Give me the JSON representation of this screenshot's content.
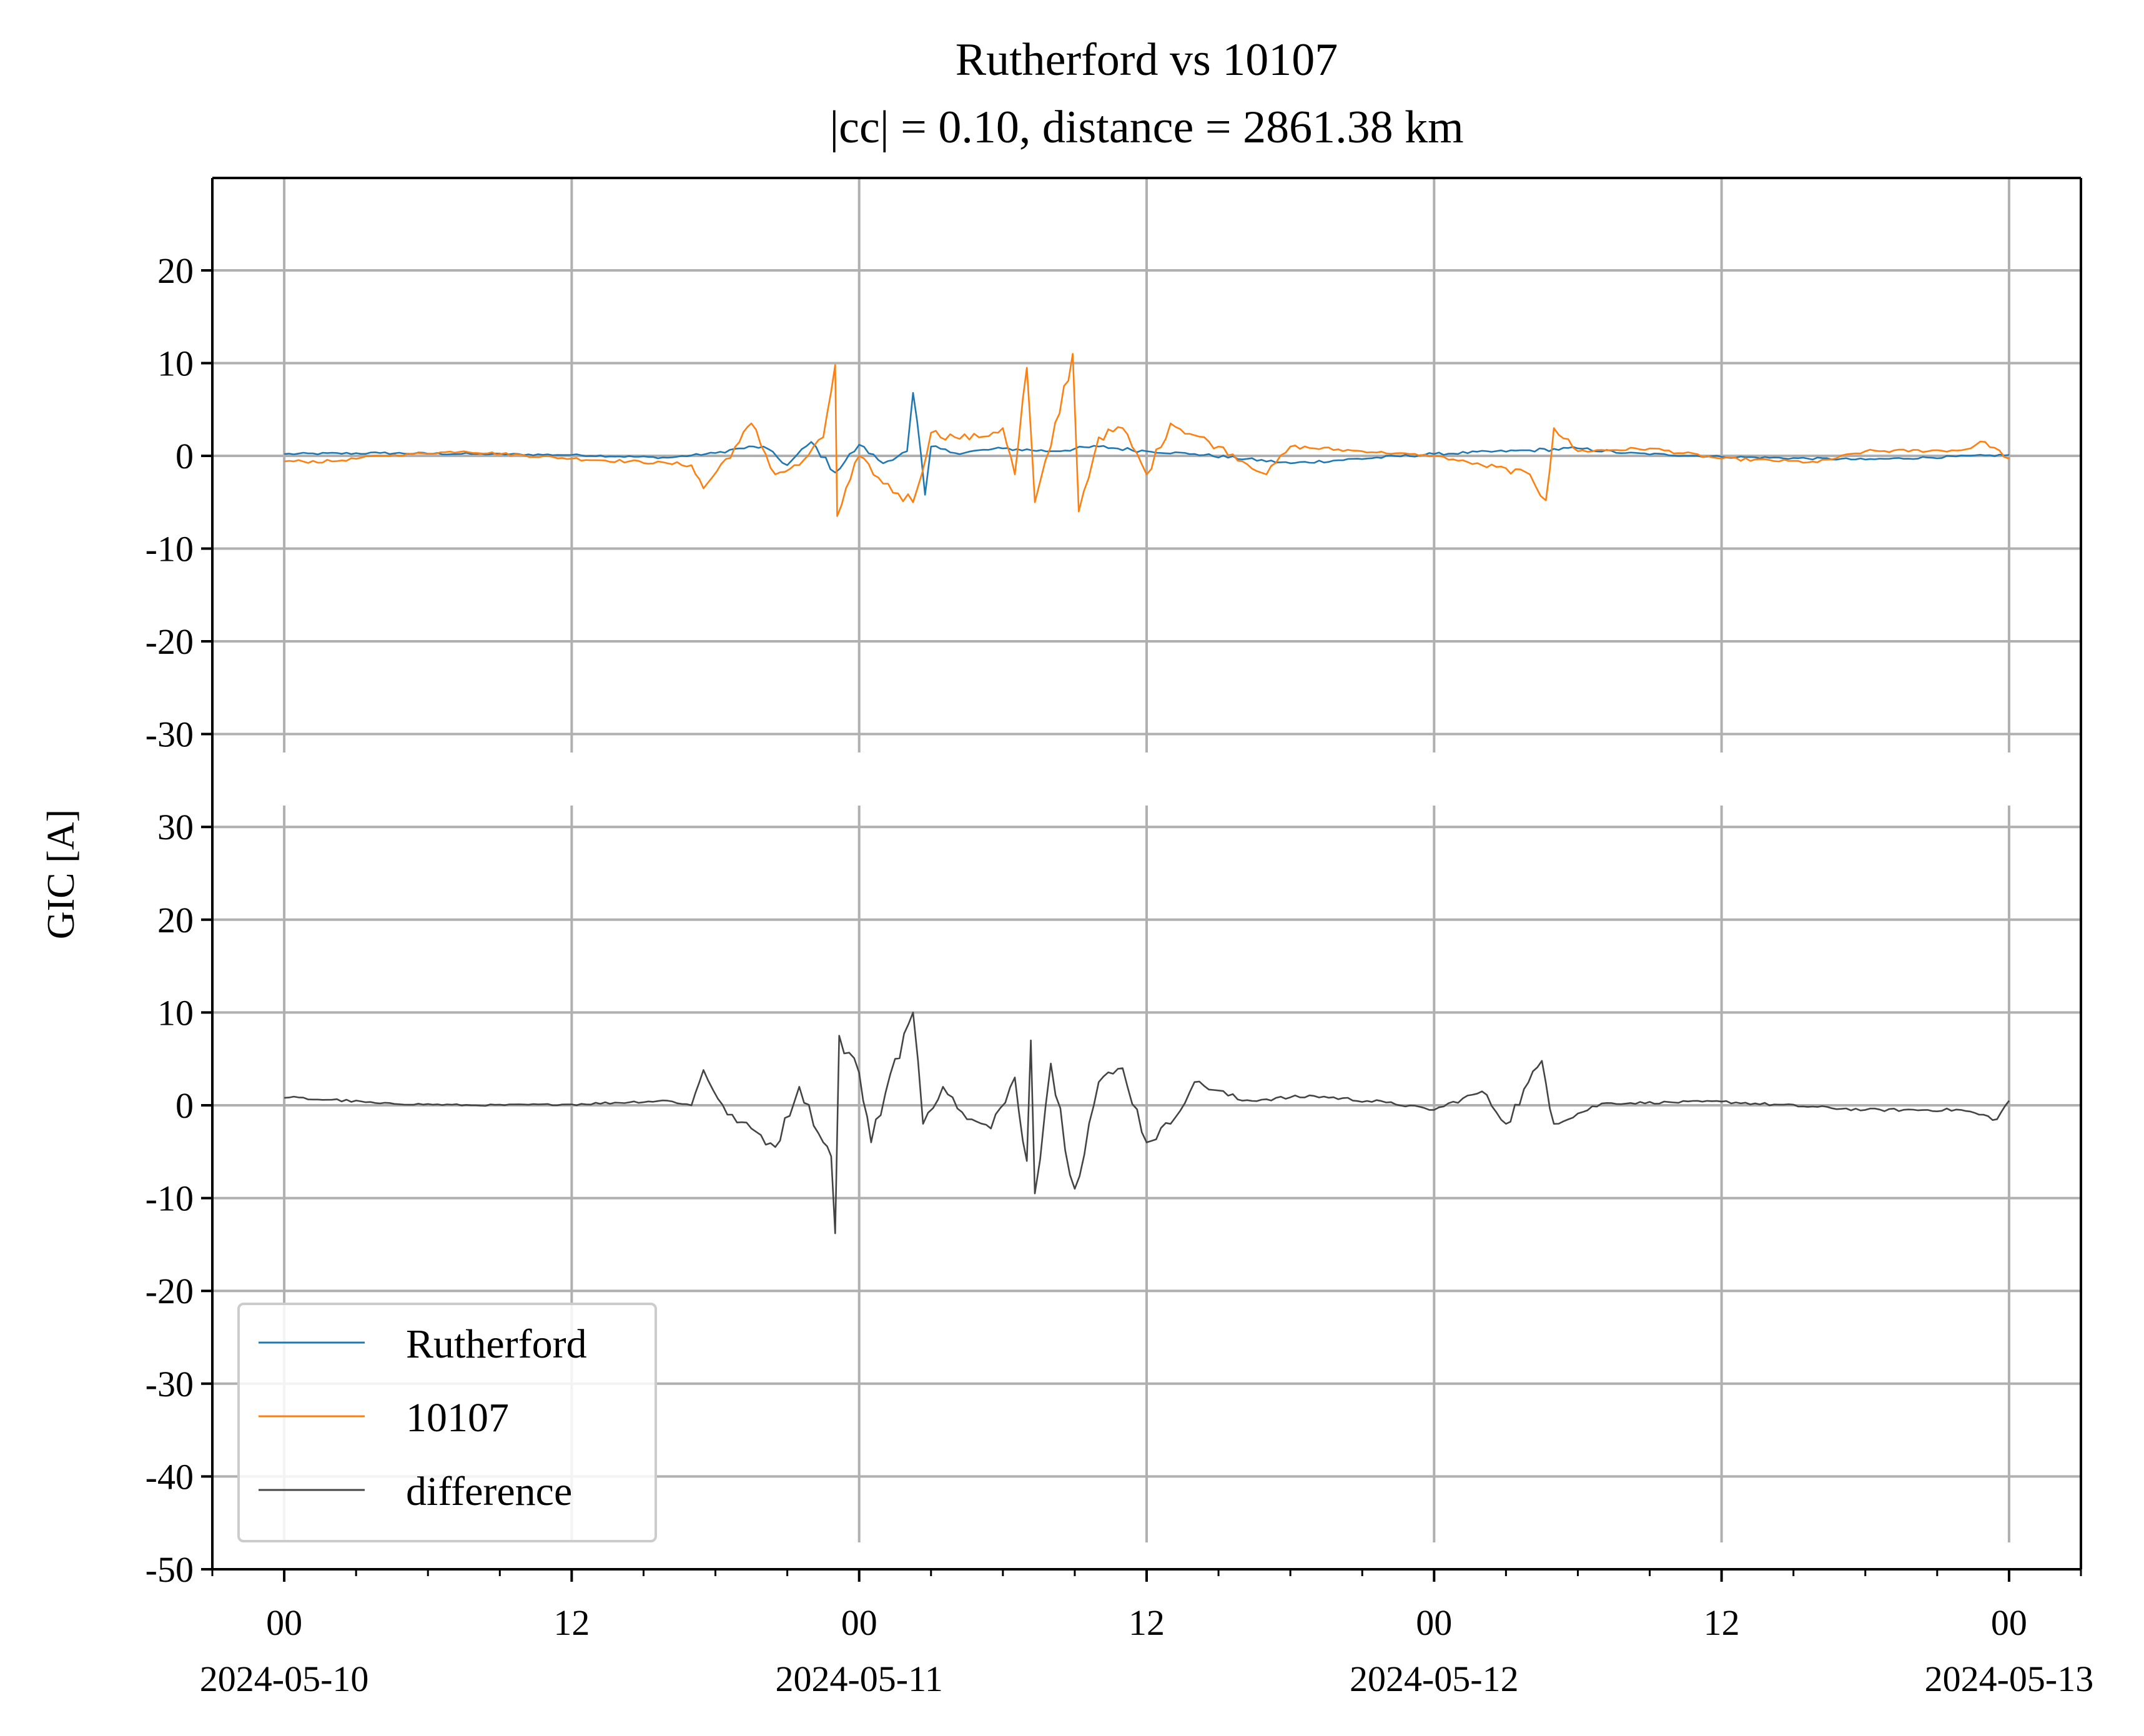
{
  "title": {
    "line1": "Rutherford vs 10107",
    "line2": "|cc| = 0.10, distance = 2861.38 km"
  },
  "ylabel": "GIC [A]",
  "chart_data": [
    {
      "type": "line",
      "panel": "top",
      "ylim": [
        -30,
        30
      ],
      "yticks": [
        -30,
        -20,
        -10,
        0,
        10,
        20
      ],
      "xlim": [
        "2024-05-09T21:00",
        "2024-05-13T03:00"
      ],
      "grid": true,
      "series": [
        {
          "name": "Rutherford",
          "color": "#1f77b4",
          "points": [
            [
              "2024-05-10T00:00",
              0.2
            ],
            [
              "2024-05-10T04:00",
              0.3
            ],
            [
              "2024-05-10T08:00",
              0.2
            ],
            [
              "2024-05-10T12:00",
              0.1
            ],
            [
              "2024-05-10T16:00",
              -0.2
            ],
            [
              "2024-05-10T18:00",
              0.3
            ],
            [
              "2024-05-10T19:00",
              0.8
            ],
            [
              "2024-05-10T20:00",
              1.0
            ],
            [
              "2024-05-10T21:00",
              -1.0
            ],
            [
              "2024-05-10T22:00",
              1.5
            ],
            [
              "2024-05-10T23:00",
              -1.8
            ],
            [
              "2024-05-11T00:00",
              1.2
            ],
            [
              "2024-05-11T01:00",
              -0.8
            ],
            [
              "2024-05-11T02:00",
              0.5
            ],
            [
              "2024-05-11T02:15",
              6.8
            ],
            [
              "2024-05-11T02:45",
              -4.2
            ],
            [
              "2024-05-11T03:00",
              1.0
            ],
            [
              "2024-05-11T04:00",
              0.3
            ],
            [
              "2024-05-11T06:00",
              0.8
            ],
            [
              "2024-05-11T08:00",
              0.5
            ],
            [
              "2024-05-11T10:00",
              1.0
            ],
            [
              "2024-05-11T12:00",
              0.5
            ],
            [
              "2024-05-11T14:00",
              0.2
            ],
            [
              "2024-05-11T18:00",
              -0.8
            ],
            [
              "2024-05-12T00:00",
              0.2
            ],
            [
              "2024-05-12T04:00",
              0.6
            ],
            [
              "2024-05-12T06:00",
              0.8
            ],
            [
              "2024-05-12T08:00",
              0.3
            ],
            [
              "2024-05-12T12:00",
              -0.1
            ],
            [
              "2024-05-12T18:00",
              -0.4
            ],
            [
              "2024-05-13T00:00",
              0.1
            ]
          ]
        },
        {
          "name": "10107",
          "color": "#ff7f0e",
          "points": [
            [
              "2024-05-10T00:00",
              -0.6
            ],
            [
              "2024-05-10T02:00",
              -0.6
            ],
            [
              "2024-05-10T04:00",
              0.0
            ],
            [
              "2024-05-10T07:30",
              0.5
            ],
            [
              "2024-05-10T12:00",
              -0.3
            ],
            [
              "2024-05-10T16:00",
              -0.8
            ],
            [
              "2024-05-10T17:00",
              -1.0
            ],
            [
              "2024-05-10T17:30",
              -3.5
            ],
            [
              "2024-05-10T19:00",
              1.5
            ],
            [
              "2024-05-10T19:30",
              3.5
            ],
            [
              "2024-05-10T20:30",
              -2.0
            ],
            [
              "2024-05-10T21:30",
              -1.0
            ],
            [
              "2024-05-10T22:30",
              2.0
            ],
            [
              "2024-05-10T23:00",
              9.8
            ],
            [
              "2024-05-10T23:05",
              -6.5
            ],
            [
              "2024-05-11T00:00",
              0.0
            ],
            [
              "2024-05-11T01:00",
              -3.0
            ],
            [
              "2024-05-11T02:15",
              -5.0
            ],
            [
              "2024-05-11T03:00",
              2.5
            ],
            [
              "2024-05-11T04:00",
              2.0
            ],
            [
              "2024-05-11T05:00",
              2.0
            ],
            [
              "2024-05-11T06:00",
              3.0
            ],
            [
              "2024-05-11T06:30",
              -2.0
            ],
            [
              "2024-05-11T07:00",
              9.5
            ],
            [
              "2024-05-11T07:20",
              -5.0
            ],
            [
              "2024-05-11T08:00",
              1.0
            ],
            [
              "2024-05-11T08:55",
              11.0
            ],
            [
              "2024-05-11T09:10",
              -6.0
            ],
            [
              "2024-05-11T10:00",
              2.0
            ],
            [
              "2024-05-11T11:00",
              3.0
            ],
            [
              "2024-05-11T12:00",
              -2.0
            ],
            [
              "2024-05-11T13:00",
              3.5
            ],
            [
              "2024-05-11T15:00",
              1.0
            ],
            [
              "2024-05-11T17:00",
              -2.0
            ],
            [
              "2024-05-11T18:00",
              1.0
            ],
            [
              "2024-05-11T21:00",
              0.5
            ],
            [
              "2024-05-12T00:00",
              0.0
            ],
            [
              "2024-05-12T02:00",
              -1.0
            ],
            [
              "2024-05-12T04:00",
              -2.0
            ],
            [
              "2024-05-12T04:40",
              -4.8
            ],
            [
              "2024-05-12T05:00",
              3.0
            ],
            [
              "2024-05-12T06:00",
              0.5
            ],
            [
              "2024-05-12T09:00",
              0.8
            ],
            [
              "2024-05-12T12:00",
              -0.3
            ],
            [
              "2024-05-12T16:00",
              -0.7
            ],
            [
              "2024-05-12T18:00",
              0.5
            ],
            [
              "2024-05-12T22:00",
              0.6
            ],
            [
              "2024-05-12T23:00",
              1.5
            ],
            [
              "2024-05-13T00:00",
              -0.3
            ]
          ]
        }
      ]
    },
    {
      "type": "line",
      "panel": "bottom",
      "ylim": [
        -50,
        30
      ],
      "yticks": [
        -50,
        -40,
        -30,
        -20,
        -10,
        0,
        10,
        20,
        30
      ],
      "xlim": [
        "2024-05-09T21:00",
        "2024-05-13T03:00"
      ],
      "grid": true,
      "xticks": [
        {
          "t": "2024-05-10T00:00",
          "hour": "00",
          "date": "2024-05-10"
        },
        {
          "t": "2024-05-10T12:00",
          "hour": "12",
          "date": ""
        },
        {
          "t": "2024-05-11T00:00",
          "hour": "00",
          "date": "2024-05-11"
        },
        {
          "t": "2024-05-11T12:00",
          "hour": "12",
          "date": ""
        },
        {
          "t": "2024-05-12T00:00",
          "hour": "00",
          "date": "2024-05-12"
        },
        {
          "t": "2024-05-12T12:00",
          "hour": "12",
          "date": ""
        },
        {
          "t": "2024-05-13T00:00",
          "hour": "00",
          "date": "2024-05-13"
        }
      ],
      "series": [
        {
          "name": "difference",
          "color": "#444444",
          "points": [
            [
              "2024-05-10T00:00",
              0.8
            ],
            [
              "2024-05-10T02:00",
              0.6
            ],
            [
              "2024-05-10T04:00",
              0.2
            ],
            [
              "2024-05-10T08:00",
              0.0
            ],
            [
              "2024-05-10T12:00",
              0.1
            ],
            [
              "2024-05-10T16:00",
              0.5
            ],
            [
              "2024-05-10T17:00",
              0.0
            ],
            [
              "2024-05-10T17:30",
              3.8
            ],
            [
              "2024-05-10T18:30",
              -1.0
            ],
            [
              "2024-05-10T19:30",
              -2.5
            ],
            [
              "2024-05-10T20:30",
              -4.5
            ],
            [
              "2024-05-10T21:30",
              2.0
            ],
            [
              "2024-05-10T22:30",
              -4.0
            ],
            [
              "2024-05-10T22:50",
              -5.5
            ],
            [
              "2024-05-10T23:00",
              -13.8
            ],
            [
              "2024-05-10T23:10",
              7.5
            ],
            [
              "2024-05-11T00:00",
              3.5
            ],
            [
              "2024-05-11T00:30",
              -4.0
            ],
            [
              "2024-05-11T01:30",
              5.0
            ],
            [
              "2024-05-11T02:15",
              10.0
            ],
            [
              "2024-05-11T02:40",
              -2.0
            ],
            [
              "2024-05-11T03:30",
              2.0
            ],
            [
              "2024-05-11T04:30",
              -1.5
            ],
            [
              "2024-05-11T05:30",
              -2.5
            ],
            [
              "2024-05-11T06:30",
              3.0
            ],
            [
              "2024-05-11T07:00",
              -6.0
            ],
            [
              "2024-05-11T07:10",
              7.0
            ],
            [
              "2024-05-11T07:20",
              -9.5
            ],
            [
              "2024-05-11T08:00",
              4.5
            ],
            [
              "2024-05-11T09:00",
              -9.0
            ],
            [
              "2024-05-11T10:00",
              2.5
            ],
            [
              "2024-05-11T11:00",
              4.0
            ],
            [
              "2024-05-11T12:00",
              -4.0
            ],
            [
              "2024-05-11T13:00",
              -2.0
            ],
            [
              "2024-05-11T14:00",
              2.5
            ],
            [
              "2024-05-11T16:00",
              0.5
            ],
            [
              "2024-05-11T19:00",
              1.0
            ],
            [
              "2024-05-11T22:00",
              0.3
            ],
            [
              "2024-05-12T00:00",
              -0.5
            ],
            [
              "2024-05-12T02:00",
              1.5
            ],
            [
              "2024-05-12T03:00",
              -2.0
            ],
            [
              "2024-05-12T04:30",
              4.8
            ],
            [
              "2024-05-12T05:00",
              -2.0
            ],
            [
              "2024-05-12T07:00",
              0.2
            ],
            [
              "2024-05-12T12:00",
              0.4
            ],
            [
              "2024-05-12T18:00",
              -0.5
            ],
            [
              "2024-05-12T22:00",
              -0.5
            ],
            [
              "2024-05-12T23:30",
              -1.5
            ],
            [
              "2024-05-13T00:00",
              0.5
            ]
          ]
        }
      ]
    }
  ],
  "legend": {
    "position": "lower-left",
    "entries": [
      {
        "label": "Rutherford",
        "color": "#1f77b4"
      },
      {
        "label": "10107",
        "color": "#ff7f0e"
      },
      {
        "label": "difference",
        "color": "#444444"
      }
    ]
  }
}
